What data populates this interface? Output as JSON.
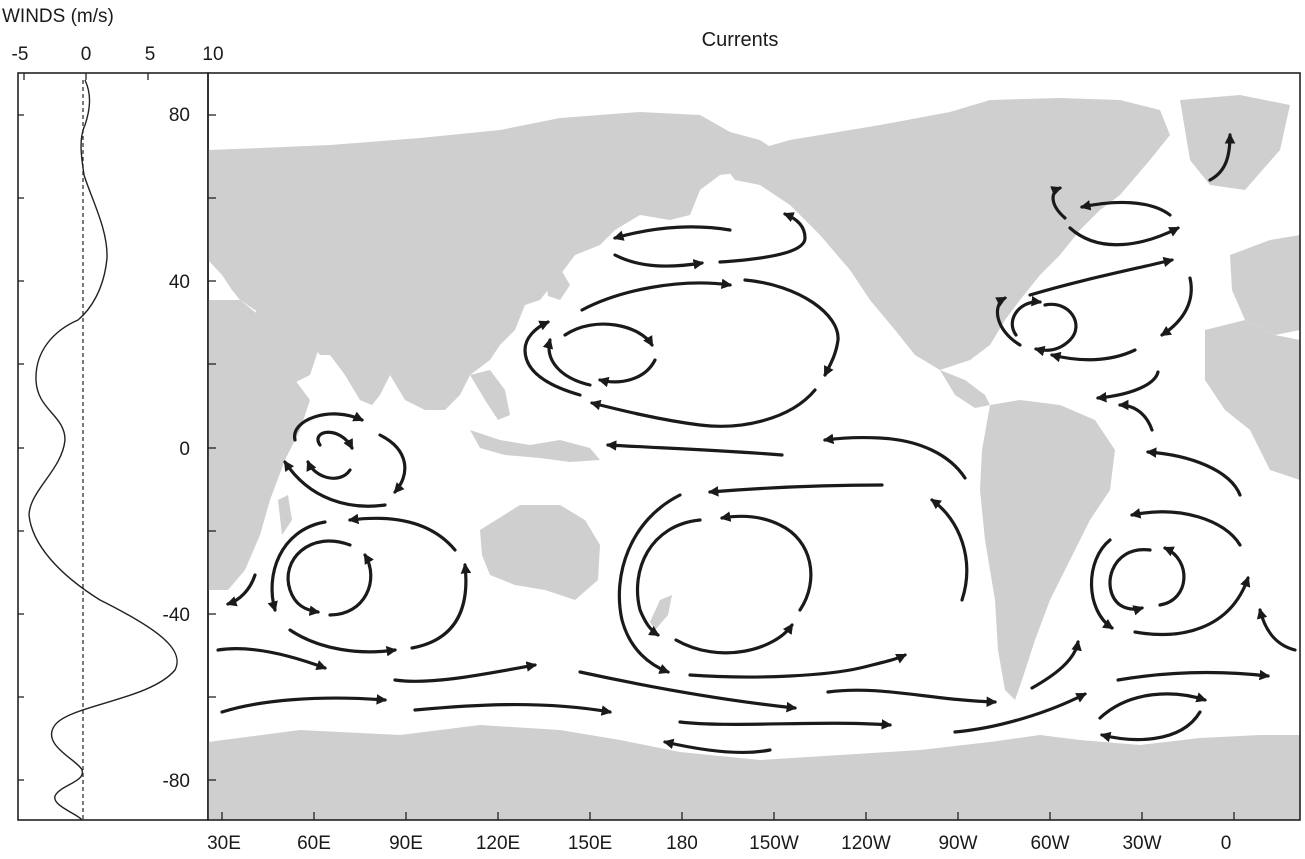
{
  "winds_panel": {
    "title": "WINDS (m/s)",
    "x_tick_labels": [
      "-5",
      "0",
      "5",
      "10"
    ]
  },
  "currents_panel": {
    "title": "Currents",
    "y_tick_labels": [
      "80",
      "40",
      "0",
      "-40",
      "-80"
    ],
    "x_tick_labels": [
      "30E",
      "60E",
      "90E",
      "120E",
      "150E",
      "180",
      "150W",
      "120W",
      "90W",
      "60W",
      "30W",
      "0"
    ]
  },
  "colors": {
    "land": "#cfcfcf",
    "ocean": "#ffffff",
    "arrows": "#1a1a1a"
  }
}
